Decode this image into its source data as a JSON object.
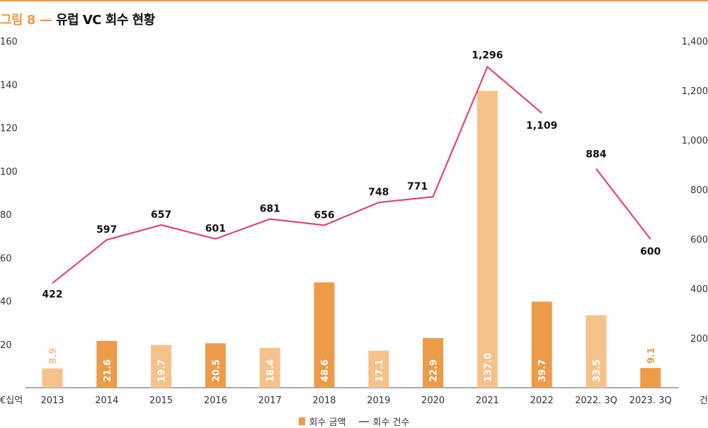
{
  "title": {
    "prefix": "그림 8",
    "dash": "—",
    "main": "유럽 VC 회수 현황"
  },
  "chart_data": {
    "type": "bar",
    "categories": [
      "2013",
      "2014",
      "2015",
      "2016",
      "2017",
      "2018",
      "2019",
      "2020",
      "2021",
      "2022",
      "2022. 3Q",
      "2023. 3Q"
    ],
    "y_left_unit": "€십억",
    "y_right_unit": "건",
    "y_left_ticks": [
      "20",
      "40",
      "60",
      "80",
      "100",
      "120",
      "140",
      "160"
    ],
    "y_right_ticks": [
      "200",
      "400",
      "600",
      "800",
      "1,000",
      "1,200",
      "1,400"
    ],
    "y_left_lim": [
      0,
      160
    ],
    "y_right_lim": [
      0,
      1400
    ],
    "series": [
      {
        "name": "회수 금액",
        "type": "bar",
        "axis": "left",
        "values": [
          8.9,
          21.6,
          19.7,
          20.5,
          18.4,
          48.6,
          17.1,
          22.9,
          137.0,
          39.7,
          33.5,
          9.1
        ],
        "labels": [
          "8.9",
          "21.6",
          "19.7",
          "20.5",
          "18.4",
          "48.6",
          "17.1",
          "22.9",
          "137.0",
          "39.7",
          "33.5",
          "9.1"
        ],
        "colors": [
          "#f6c28c",
          "#ec9b48",
          "#f6c28c",
          "#ec9b48",
          "#f6c28c",
          "#ec9b48",
          "#f6c28c",
          "#ec9b48",
          "#f6c28c",
          "#ec9b48",
          "#f6c28c",
          "#ec9b48"
        ]
      },
      {
        "name": "회수 건수",
        "type": "line",
        "axis": "right",
        "color": "#e0457a",
        "values": [
          422,
          597,
          657,
          601,
          681,
          656,
          748,
          771,
          1296,
          1109,
          884,
          600
        ],
        "labels": [
          "422",
          "597",
          "657",
          "601",
          "681",
          "656",
          "748",
          "771",
          "1,296",
          "1,109",
          "884",
          "600"
        ],
        "segments": [
          [
            0,
            9
          ],
          [
            10,
            11
          ]
        ]
      }
    ],
    "legend": [
      "회수 금액",
      "회수 건수"
    ],
    "legend_position": "bottom-center",
    "grid": false
  }
}
